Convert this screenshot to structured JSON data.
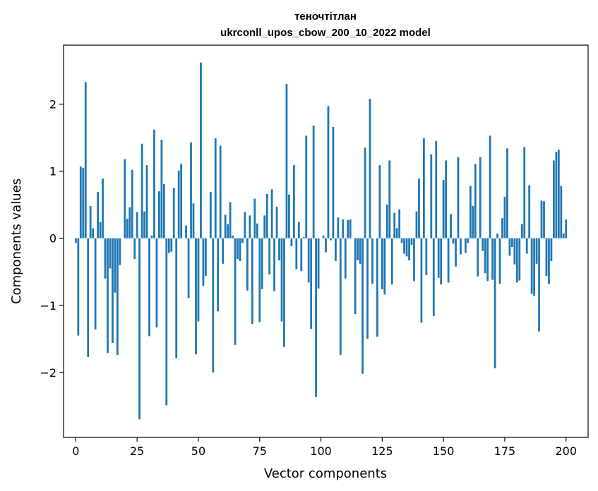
{
  "chart_data": {
    "type": "bar",
    "title": "теночтітлан",
    "subtitle": "ukrconll_upos_cbow_200_10_2022 model",
    "xlabel": "Vector components",
    "ylabel": "Components values",
    "xlim": [
      -5,
      209
    ],
    "ylim": [
      -2.97,
      2.88
    ],
    "xticks": [
      0,
      25,
      50,
      75,
      100,
      125,
      150,
      175,
      200
    ],
    "yticks": [
      -2,
      -1,
      0,
      1,
      2
    ],
    "ytick_labels": [
      "−2",
      "−1",
      "0",
      "1",
      "2"
    ],
    "bar_color": "#1f77b4",
    "values": [
      -0.07,
      -1.45,
      1.07,
      1.05,
      2.33,
      -1.77,
      0.48,
      0.15,
      -1.36,
      0.69,
      0.24,
      0.89,
      -0.6,
      -1.71,
      -0.45,
      -1.56,
      -0.81,
      -1.74,
      -0.4,
      0.0,
      1.18,
      0.29,
      0.46,
      1.02,
      -0.31,
      0.39,
      -2.7,
      1.41,
      0.4,
      1.09,
      -1.46,
      0.04,
      1.62,
      -1.33,
      0.7,
      1.47,
      0.81,
      -2.49,
      -0.22,
      -0.2,
      0.75,
      -1.79,
      1.01,
      1.11,
      0.0,
      0.19,
      -0.89,
      1.43,
      0.52,
      -1.73,
      -1.24,
      2.62,
      -0.71,
      -0.56,
      0.0,
      0.69,
      -2.0,
      1.49,
      -1.09,
      1.38,
      -0.38,
      0.35,
      0.21,
      0.54,
      0.04,
      -1.59,
      -0.31,
      -0.34,
      -0.07,
      0.39,
      -0.78,
      0.34,
      -1.28,
      0.59,
      0.22,
      -1.25,
      -0.76,
      0.34,
      0.66,
      -0.54,
      0.73,
      -0.79,
      0.47,
      -0.33,
      -1.24,
      -1.62,
      2.3,
      0.65,
      -0.12,
      1.09,
      -0.46,
      0.24,
      -0.49,
      0.02,
      1.53,
      -0.66,
      -1.35,
      1.68,
      -2.37,
      -0.75,
      0.0,
      0.04,
      -0.21,
      1.97,
      -0.03,
      1.66,
      -0.34,
      0.31,
      -1.74,
      0.28,
      -0.6,
      0.27,
      0.28,
      0.0,
      -1.13,
      -0.33,
      -0.38,
      -2.02,
      1.35,
      -1.5,
      2.08,
      -0.68,
      0.0,
      -1.47,
      1.09,
      -0.76,
      -0.84,
      0.5,
      1.16,
      -0.69,
      0.38,
      0.15,
      0.43,
      -0.07,
      -0.23,
      -0.27,
      -0.33,
      -0.1,
      -0.64,
      0.4,
      0.89,
      -1.26,
      1.49,
      -0.55,
      0.0,
      1.25,
      -1.16,
      1.45,
      -0.59,
      -0.69,
      0.87,
      1.16,
      -0.66,
      0.36,
      -0.08,
      -0.42,
      1.21,
      -0.24,
      0.0,
      -0.22,
      -0.07,
      0.78,
      0.48,
      1.11,
      -0.57,
      1.21,
      -0.19,
      -0.52,
      -0.64,
      1.53,
      -0.62,
      -1.94,
      0.07,
      -0.68,
      0.3,
      0.62,
      1.34,
      -0.26,
      -0.13,
      -0.39,
      -0.66,
      -0.63,
      0.21,
      1.36,
      -0.23,
      0.79,
      -0.83,
      -0.86,
      -0.38,
      -1.39,
      0.56,
      0.55,
      -0.56,
      -0.68,
      -0.34,
      1.16,
      1.29,
      1.32,
      0.78,
      0.07,
      0.28
    ]
  }
}
